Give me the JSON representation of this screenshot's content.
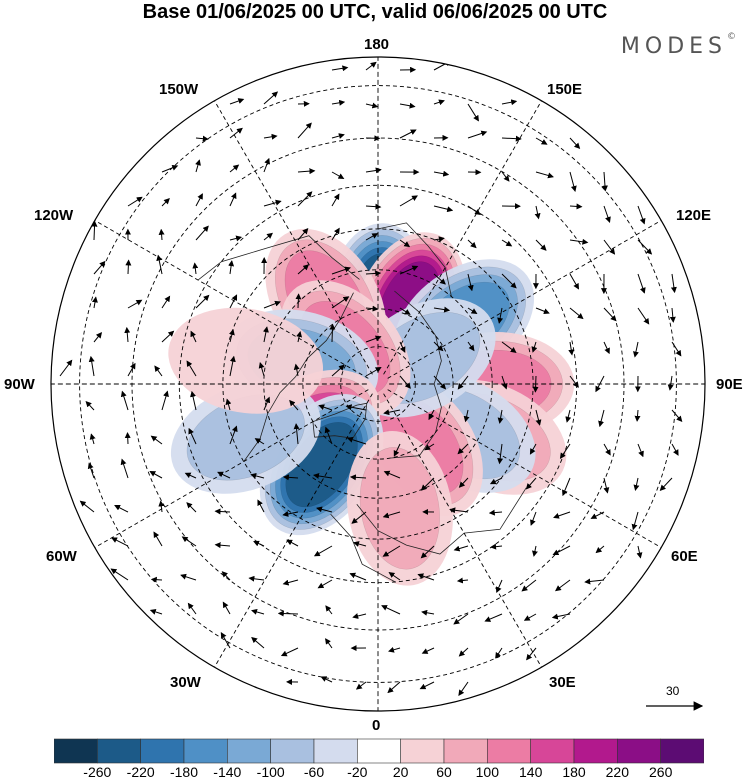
{
  "title": "Base 01/06/2025 00 UTC, valid 06/06/2025 00 UTC",
  "brand": {
    "name": "MODES",
    "mark": "©"
  },
  "longitude_labels": {
    "top": "180",
    "bottom": "0",
    "left": "90W",
    "right": "90E",
    "upper_left": "150W",
    "upper_right": "150E",
    "mid_left": "120W",
    "mid_right": "120E",
    "lower_left": "60W",
    "lower_right": "60E",
    "bottom_left": "30W",
    "bottom_right": "30E"
  },
  "vector_scale": {
    "value": "30"
  },
  "colorbar": {
    "ticks": [
      "-260",
      "-220",
      "-180",
      "-140",
      "-100",
      "-60",
      "-20",
      "20",
      "60",
      "100",
      "140",
      "180",
      "220",
      "260"
    ],
    "colors": [
      "#0f3552",
      "#1c5a88",
      "#2f74ae",
      "#4f90c6",
      "#7aa9d5",
      "#a9c0e0",
      "#d4dcee",
      "#ffffff",
      "#f6d2d6",
      "#f1a9b9",
      "#ec7ca4",
      "#d74698",
      "#b2198d",
      "#8b0e86",
      "#5c0c73"
    ]
  },
  "map": {
    "projection": "north-polar-stereographic",
    "anomalies": [
      {
        "lon": 178,
        "r": 22,
        "value": -260
      },
      {
        "lon": 158,
        "r": 22,
        "value": 230
      },
      {
        "lon": 126,
        "r": 28,
        "value": -150
      },
      {
        "lon": 90,
        "r": 31,
        "value": 120
      },
      {
        "lon": 65,
        "r": 33,
        "value": 70
      },
      {
        "lon": 60,
        "r": 26,
        "value": -100
      },
      {
        "lon": 35,
        "r": 20,
        "value": 130
      },
      {
        "lon": 120,
        "r": 14,
        "value": -80
      },
      {
        "lon": -148,
        "r": 26,
        "value": 140
      },
      {
        "lon": -138,
        "r": 13,
        "value": 110
      },
      {
        "lon": -105,
        "r": 21,
        "value": -110
      },
      {
        "lon": -55,
        "r": 22,
        "value": 160
      },
      {
        "lon": -35,
        "r": 26,
        "value": -240
      },
      {
        "lon": -68,
        "r": 37,
        "value": -90
      },
      {
        "lon": -100,
        "r": 35,
        "value": 50
      },
      {
        "lon": 10,
        "r": 33,
        "value": 80
      }
    ]
  }
}
